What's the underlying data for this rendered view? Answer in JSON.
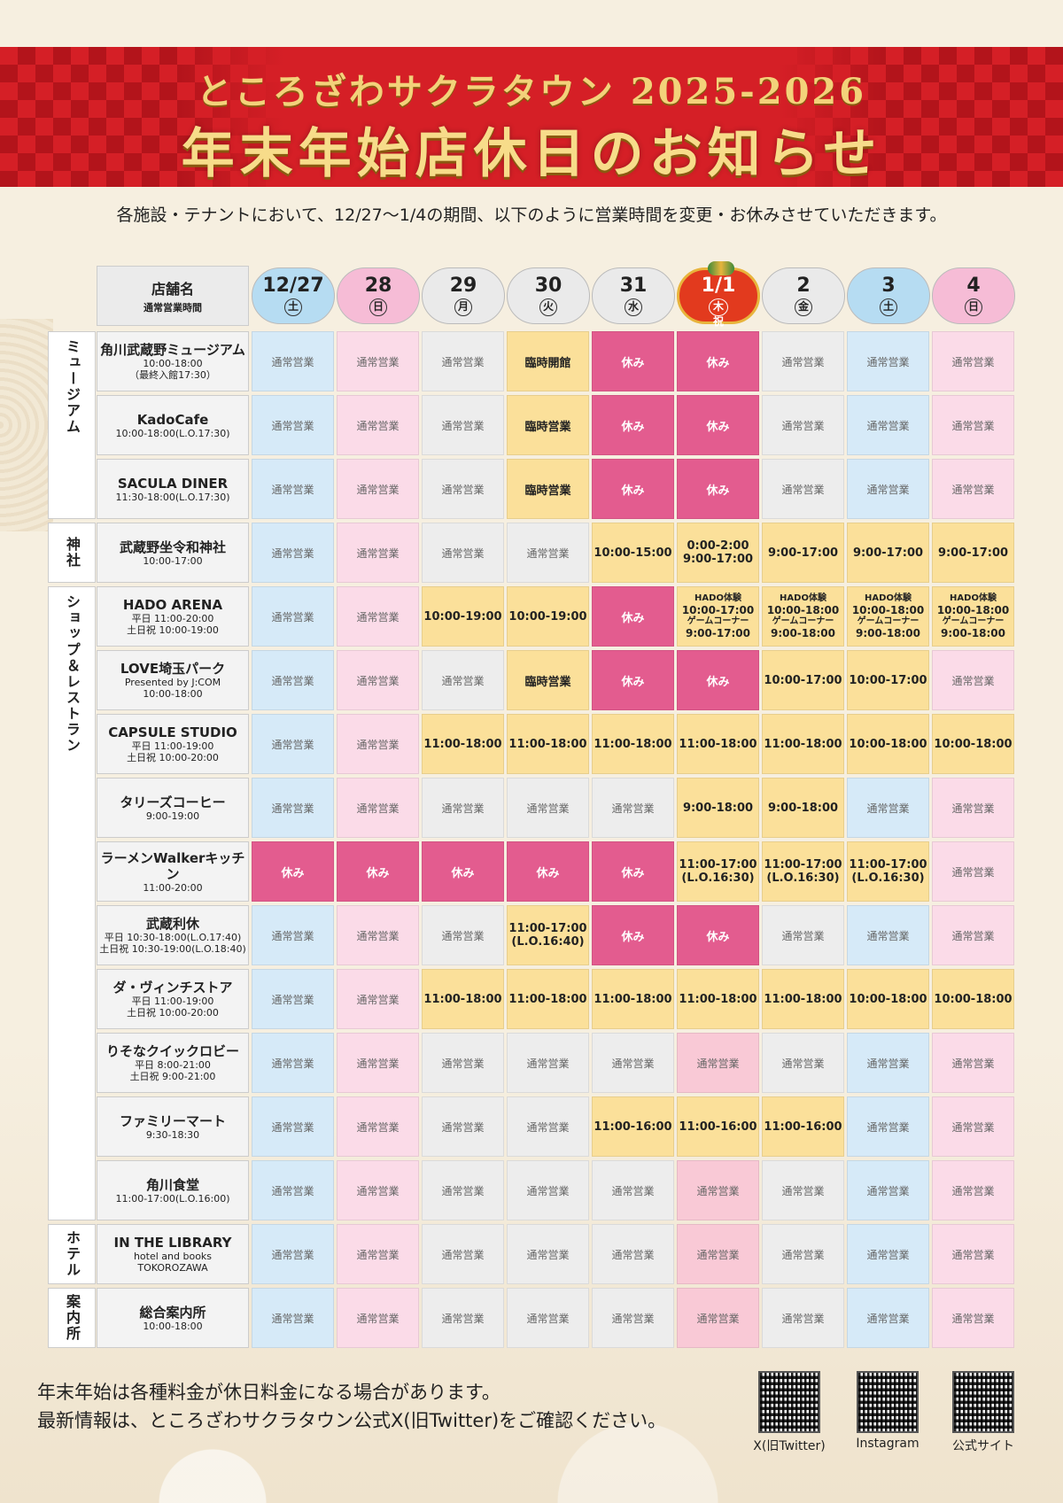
{
  "header": {
    "subtitle": "ところざわサクラタウン 2025-2026",
    "title": "年末年始店休日のお知らせ"
  },
  "intro": "各施設・テナントにおいて、12/27～1/4の期間、以下のように営業時間を変更・お休みさせていただきます。",
  "table_header": {
    "store_label": "店舗名",
    "hours_label": "通常営業時間"
  },
  "days": [
    {
      "num": "12/27",
      "weekday": "土",
      "color": "#b6dcf2"
    },
    {
      "num": "28",
      "weekday": "日",
      "color": "#f6bcd6"
    },
    {
      "num": "29",
      "weekday": "月",
      "color": "#eaeaea"
    },
    {
      "num": "30",
      "weekday": "火",
      "color": "#eaeaea"
    },
    {
      "num": "31",
      "weekday": "水",
      "color": "#eaeaea"
    },
    {
      "num": "1/1",
      "weekday": "木祝",
      "color": "#e23a1e"
    },
    {
      "num": "2",
      "weekday": "金",
      "color": "#eaeaea"
    },
    {
      "num": "3",
      "weekday": "土",
      "color": "#b6dcf2"
    },
    {
      "num": "4",
      "weekday": "日",
      "color": "#f6bcd6"
    }
  ],
  "column_colors": [
    "#d6eaf8",
    "#fbdbe8",
    "#ededed",
    "#ededed",
    "#ededed",
    "#f9c9d6",
    "#ededed",
    "#d6eaf8",
    "#fbdbe8"
  ],
  "categories": [
    {
      "label": "ミュージアム",
      "rows": 3
    },
    {
      "label": "神社",
      "rows": 1
    },
    {
      "label": "ショップ＆レストラン",
      "rows": 10
    },
    {
      "label": "ホテル",
      "rows": 1
    },
    {
      "label": "案内所",
      "rows": 1
    }
  ],
  "rows": [
    {
      "name": "角川武蔵野ミュージアム",
      "hours": [
        "10:00-18:00",
        "（最終入館17:30）"
      ],
      "cells": [
        [
          "n",
          "通常営業"
        ],
        [
          "n",
          "通常営業"
        ],
        [
          "n",
          "通常営業"
        ],
        [
          "s",
          "臨時開館"
        ],
        [
          "c",
          "休み"
        ],
        [
          "c",
          "休み"
        ],
        [
          "n",
          "通常営業"
        ],
        [
          "n",
          "通常営業"
        ],
        [
          "n",
          "通常営業"
        ]
      ]
    },
    {
      "name": "KadoCafe",
      "hours": [
        "10:00-18:00(L.O.17:30)"
      ],
      "cells": [
        [
          "n",
          "通常営業"
        ],
        [
          "n",
          "通常営業"
        ],
        [
          "n",
          "通常営業"
        ],
        [
          "s",
          "臨時営業"
        ],
        [
          "c",
          "休み"
        ],
        [
          "c",
          "休み"
        ],
        [
          "n",
          "通常営業"
        ],
        [
          "n",
          "通常営業"
        ],
        [
          "n",
          "通常営業"
        ]
      ]
    },
    {
      "name": "SACULA DINER",
      "hours": [
        "11:30-18:00(L.O.17:30)"
      ],
      "cells": [
        [
          "n",
          "通常営業"
        ],
        [
          "n",
          "通常営業"
        ],
        [
          "n",
          "通常営業"
        ],
        [
          "s",
          "臨時営業"
        ],
        [
          "c",
          "休み"
        ],
        [
          "c",
          "休み"
        ],
        [
          "n",
          "通常営業"
        ],
        [
          "n",
          "通常営業"
        ],
        [
          "n",
          "通常営業"
        ]
      ]
    },
    {
      "name": "武蔵野坐令和神社",
      "hours": [
        "10:00-17:00"
      ],
      "cells": [
        [
          "n",
          "通常営業"
        ],
        [
          "n",
          "通常営業"
        ],
        [
          "n",
          "通常営業"
        ],
        [
          "n",
          "通常営業"
        ],
        [
          "s",
          "10:00-15:00"
        ],
        [
          "s",
          "0:00-2:00",
          "9:00-17:00"
        ],
        [
          "s",
          "9:00-17:00"
        ],
        [
          "s",
          "9:00-17:00"
        ],
        [
          "s",
          "9:00-17:00"
        ]
      ]
    },
    {
      "name": "HADO ARENA",
      "hours": [
        "平日 11:00-20:00",
        "土日祝 10:00-19:00"
      ],
      "cells": [
        [
          "n",
          "通常営業"
        ],
        [
          "n",
          "通常営業"
        ],
        [
          "s",
          "10:00-19:00"
        ],
        [
          "s",
          "10:00-19:00"
        ],
        [
          "c",
          "休み"
        ],
        [
          "h",
          "HADO体験",
          "10:00-17:00",
          "ゲームコーナー",
          "9:00-17:00"
        ],
        [
          "h",
          "HADO体験",
          "10:00-18:00",
          "ゲームコーナー",
          "9:00-18:00"
        ],
        [
          "h",
          "HADO体験",
          "10:00-18:00",
          "ゲームコーナー",
          "9:00-18:00"
        ],
        [
          "h",
          "HADO体験",
          "10:00-18:00",
          "ゲームコーナー",
          "9:00-18:00"
        ]
      ]
    },
    {
      "name": "LOVE埼玉パーク",
      "hours": [
        "Presented by J:COM",
        "10:00-18:00"
      ],
      "cells": [
        [
          "n",
          "通常営業"
        ],
        [
          "n",
          "通常営業"
        ],
        [
          "n",
          "通常営業"
        ],
        [
          "s",
          "臨時営業"
        ],
        [
          "c",
          "休み"
        ],
        [
          "c",
          "休み"
        ],
        [
          "s",
          "10:00-17:00"
        ],
        [
          "s",
          "10:00-17:00"
        ],
        [
          "n",
          "通常営業"
        ]
      ]
    },
    {
      "name": "CAPSULE STUDIO",
      "hours": [
        "平日 11:00-19:00",
        "土日祝 10:00-20:00"
      ],
      "cells": [
        [
          "n",
          "通常営業"
        ],
        [
          "n",
          "通常営業"
        ],
        [
          "s",
          "11:00-18:00"
        ],
        [
          "s",
          "11:00-18:00"
        ],
        [
          "s",
          "11:00-18:00"
        ],
        [
          "s",
          "11:00-18:00"
        ],
        [
          "s",
          "11:00-18:00"
        ],
        [
          "s",
          "10:00-18:00"
        ],
        [
          "s",
          "10:00-18:00"
        ]
      ]
    },
    {
      "name": "タリーズコーヒー",
      "hours": [
        "9:00-19:00"
      ],
      "cells": [
        [
          "n",
          "通常営業"
        ],
        [
          "n",
          "通常営業"
        ],
        [
          "n",
          "通常営業"
        ],
        [
          "n",
          "通常営業"
        ],
        [
          "n",
          "通常営業"
        ],
        [
          "s",
          "9:00-18:00"
        ],
        [
          "s",
          "9:00-18:00"
        ],
        [
          "n",
          "通常営業"
        ],
        [
          "n",
          "通常営業"
        ]
      ]
    },
    {
      "name": "ラーメンWalkerキッチン",
      "hours": [
        "11:00-20:00"
      ],
      "cells": [
        [
          "c",
          "休み"
        ],
        [
          "c",
          "休み"
        ],
        [
          "c",
          "休み"
        ],
        [
          "c",
          "休み"
        ],
        [
          "c",
          "休み"
        ],
        [
          "s",
          "11:00-17:00",
          "(L.O.16:30)"
        ],
        [
          "s",
          "11:00-17:00",
          "(L.O.16:30)"
        ],
        [
          "s",
          "11:00-17:00",
          "(L.O.16:30)"
        ],
        [
          "n",
          "通常営業"
        ]
      ]
    },
    {
      "name": "武蔵利休",
      "hours": [
        "平日 10:30-18:00(L.O.17:40)",
        "土日祝 10:30-19:00(L.O.18:40)"
      ],
      "cells": [
        [
          "n",
          "通常営業"
        ],
        [
          "n",
          "通常営業"
        ],
        [
          "n",
          "通常営業"
        ],
        [
          "s",
          "11:00-17:00",
          "(L.O.16:40)"
        ],
        [
          "c",
          "休み"
        ],
        [
          "c",
          "休み"
        ],
        [
          "n",
          "通常営業"
        ],
        [
          "n",
          "通常営業"
        ],
        [
          "n",
          "通常営業"
        ]
      ]
    },
    {
      "name": "ダ・ヴィンチストア",
      "hours": [
        "平日 11:00-19:00",
        "土日祝 10:00-20:00"
      ],
      "cells": [
        [
          "n",
          "通常営業"
        ],
        [
          "n",
          "通常営業"
        ],
        [
          "s",
          "11:00-18:00"
        ],
        [
          "s",
          "11:00-18:00"
        ],
        [
          "s",
          "11:00-18:00"
        ],
        [
          "s",
          "11:00-18:00"
        ],
        [
          "s",
          "11:00-18:00"
        ],
        [
          "s",
          "10:00-18:00"
        ],
        [
          "s",
          "10:00-18:00"
        ]
      ]
    },
    {
      "name": "りそなクイックロビー",
      "hours": [
        "平日 8:00-21:00",
        "土日祝 9:00-21:00"
      ],
      "cells": [
        [
          "n",
          "通常営業"
        ],
        [
          "n",
          "通常営業"
        ],
        [
          "n",
          "通常営業"
        ],
        [
          "n",
          "通常営業"
        ],
        [
          "n",
          "通常営業"
        ],
        [
          "n",
          "通常営業"
        ],
        [
          "n",
          "通常営業"
        ],
        [
          "n",
          "通常営業"
        ],
        [
          "n",
          "通常営業"
        ]
      ]
    },
    {
      "name": "ファミリーマート",
      "hours": [
        "9:30-18:30"
      ],
      "cells": [
        [
          "n",
          "通常営業"
        ],
        [
          "n",
          "通常営業"
        ],
        [
          "n",
          "通常営業"
        ],
        [
          "n",
          "通常営業"
        ],
        [
          "s",
          "11:00-16:00"
        ],
        [
          "s",
          "11:00-16:00"
        ],
        [
          "s",
          "11:00-16:00"
        ],
        [
          "n",
          "通常営業"
        ],
        [
          "n",
          "通常営業"
        ]
      ]
    },
    {
      "name": "角川食堂",
      "hours": [
        "11:00-17:00(L.O.16:00)"
      ],
      "cells": [
        [
          "n",
          "通常営業"
        ],
        [
          "n",
          "通常営業"
        ],
        [
          "n",
          "通常営業"
        ],
        [
          "n",
          "通常営業"
        ],
        [
          "n",
          "通常営業"
        ],
        [
          "n",
          "通常営業"
        ],
        [
          "n",
          "通常営業"
        ],
        [
          "n",
          "通常営業"
        ],
        [
          "n",
          "通常営業"
        ]
      ]
    },
    {
      "name": "IN THE LIBRARY",
      "hours": [
        "hotel and books TOKOROZAWA"
      ],
      "cells": [
        [
          "n",
          "通常営業"
        ],
        [
          "n",
          "通常営業"
        ],
        [
          "n",
          "通常営業"
        ],
        [
          "n",
          "通常営業"
        ],
        [
          "n",
          "通常営業"
        ],
        [
          "n",
          "通常営業"
        ],
        [
          "n",
          "通常営業"
        ],
        [
          "n",
          "通常営業"
        ],
        [
          "n",
          "通常営業"
        ]
      ]
    },
    {
      "name": "総合案内所",
      "hours": [
        "10:00-18:00"
      ],
      "cells": [
        [
          "n",
          "通常営業"
        ],
        [
          "n",
          "通常営業"
        ],
        [
          "n",
          "通常営業"
        ],
        [
          "n",
          "通常営業"
        ],
        [
          "n",
          "通常営業"
        ],
        [
          "n",
          "通常営業"
        ],
        [
          "n",
          "通常営業"
        ],
        [
          "n",
          "通常営業"
        ],
        [
          "n",
          "通常営業"
        ]
      ]
    }
  ],
  "footer": {
    "line1": "年末年始は各種料金が休日料金になる場合があります。",
    "line2": "最新情報は、ところざわサクラタウン公式X(旧Twitter)をご確認ください。",
    "qr_labels": [
      "X(旧Twitter)",
      "Instagram",
      "公式サイト"
    ]
  }
}
